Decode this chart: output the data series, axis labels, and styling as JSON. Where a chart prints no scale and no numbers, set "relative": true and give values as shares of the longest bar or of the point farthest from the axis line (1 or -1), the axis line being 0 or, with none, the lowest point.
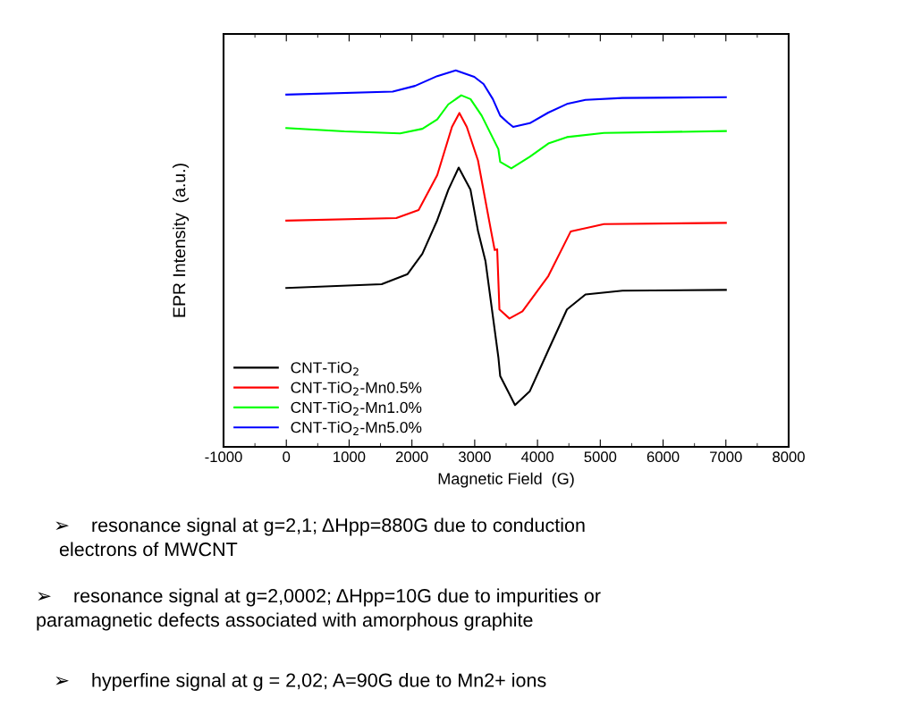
{
  "chart_data": {
    "type": "line",
    "relative": true,
    "xlabel": "Magnetic Field  (G)",
    "ylabel": "EPR Intensity  (a.u.)",
    "xlim": [
      -1000,
      8000
    ],
    "xticks": [
      -1000,
      0,
      1000,
      2000,
      3000,
      4000,
      5000,
      6000,
      7000,
      8000
    ],
    "legend": "bottom left",
    "grid": false,
    "marker": "none",
    "line_style": "solid",
    "series": [
      {
        "name": "CNT-TiO$_{2}$",
        "color": "#000000",
        "x": [
          0,
          1518,
          1931,
          2167,
          2403,
          2580,
          2745,
          2933,
          3052,
          3171,
          3377,
          3406,
          3642,
          3878,
          4173,
          4469,
          4764,
          5353,
          7000
        ],
        "values": [
          0.422,
          0.432,
          0.459,
          0.513,
          0.602,
          0.683,
          0.742,
          0.683,
          0.574,
          0.494,
          0.238,
          0.188,
          0.111,
          0.148,
          0.257,
          0.365,
          0.405,
          0.415,
          0.417
        ]
      },
      {
        "name": "CNT-TiO$_{2}$-Mn0.5%",
        "color": "#ff0000",
        "x": [
          0,
          1751,
          2107,
          2403,
          2638,
          2756,
          2874,
          3052,
          3259,
          3318,
          3358,
          3394,
          3553,
          3760,
          4173,
          4528,
          5058,
          7000
        ],
        "values": [
          0.601,
          0.608,
          0.629,
          0.722,
          0.85,
          0.887,
          0.85,
          0.761,
          0.575,
          0.523,
          0.525,
          0.365,
          0.341,
          0.36,
          0.454,
          0.572,
          0.592,
          0.595
        ]
      },
      {
        "name": "CNT-TiO$_{2}$-Mn1.0%",
        "color": "#00ff00",
        "x": [
          0,
          925,
          1812,
          2167,
          2403,
          2580,
          2786,
          2933,
          3111,
          3377,
          3406,
          3583,
          3878,
          4173,
          4469,
          5058,
          7000
        ],
        "values": [
          0.847,
          0.838,
          0.833,
          0.845,
          0.87,
          0.91,
          0.934,
          0.924,
          0.88,
          0.791,
          0.757,
          0.74,
          0.771,
          0.806,
          0.823,
          0.834,
          0.839
        ]
      },
      {
        "name": "CNT-TiO$_{2}$-Mn5.0%",
        "color": "#0000ff",
        "x": [
          0,
          1694,
          2049,
          2403,
          2698,
          2993,
          3141,
          3289,
          3406,
          3524,
          3612,
          3878,
          4172,
          4469,
          4764,
          5353,
          7000
        ],
        "values": [
          0.936,
          0.944,
          0.959,
          0.985,
          1.0,
          0.983,
          0.964,
          0.924,
          0.88,
          0.862,
          0.85,
          0.86,
          0.888,
          0.911,
          0.922,
          0.927,
          0.929
        ]
      }
    ],
    "annotations": [
      "➢    resonance signal at g=2,1; ΔHpp=880G due to conduction\n electrons of MWCNT",
      "➢    resonance signal at g=2,0002; ΔHpp=10G due to impurities or\nparamagnetic defects associated with amorphous graphite",
      "➢    hyperfine signal at g = 2,02; A=90G due to Mn2+ ions"
    ]
  }
}
